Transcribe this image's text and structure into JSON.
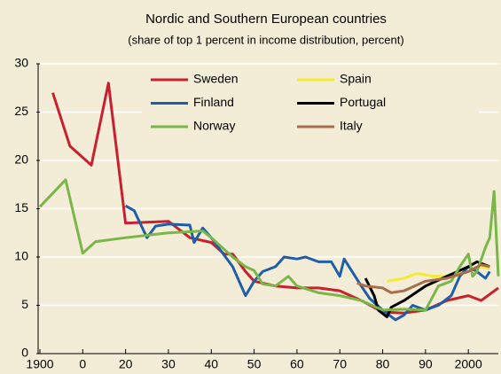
{
  "chart_data": {
    "type": "line",
    "title": "Nordic and Southern European countries",
    "subtitle": "(share of top 1 percent in income distribution, percent)",
    "xlim": [
      1900,
      2007
    ],
    "ylim": [
      0,
      30
    ],
    "xticks": [
      1900,
      {
        "value": 1910,
        "label": "0"
      },
      {
        "value": 1920,
        "label": "20"
      },
      {
        "value": 1930,
        "label": "30"
      },
      {
        "value": 1940,
        "label": "40"
      },
      {
        "value": 1950,
        "label": "50"
      },
      {
        "value": 1960,
        "label": "60"
      },
      {
        "value": 1970,
        "label": "70"
      },
      {
        "value": 1980,
        "label": "80"
      },
      {
        "value": 1990,
        "label": "90"
      },
      2000
    ],
    "yticks": [
      0,
      5,
      10,
      15,
      20,
      25,
      30
    ],
    "grid": true,
    "legend": "upper center",
    "series": [
      {
        "name": "Sweden",
        "color": "#c8202f",
        "x": [
          1903,
          1907,
          1912,
          1916,
          1920,
          1930,
          1935,
          1940,
          1943,
          1945,
          1948,
          1950,
          1955,
          1960,
          1965,
          1970,
          1975,
          1980,
          1985,
          1990,
          1995,
          2000,
          2003,
          2007
        ],
        "values": [
          27,
          21.5,
          19.5,
          28,
          13.5,
          13.7,
          12,
          11.5,
          10.3,
          10.3,
          8.5,
          7.5,
          7,
          6.8,
          6.8,
          6.5,
          5.5,
          4.3,
          4.2,
          4.5,
          5.5,
          6,
          5.5,
          6.8
        ]
      },
      {
        "name": "Spain",
        "color": "#f4ec2c",
        "x": [
          1981,
          1985,
          1988,
          1992,
          1995,
          2000,
          2003,
          2005
        ],
        "values": [
          7.5,
          7.8,
          8.3,
          8,
          8,
          8.5,
          9,
          8.8
        ]
      },
      {
        "name": "Finland",
        "color": "#1f5fa8",
        "x": [
          1920,
          1922,
          1925,
          1927,
          1930,
          1935,
          1936,
          1938,
          1940,
          1945,
          1948,
          1950,
          1952,
          1955,
          1957,
          1960,
          1962,
          1965,
          1968,
          1970,
          1971,
          1975,
          1977,
          1980,
          1983,
          1985,
          1987,
          1990,
          1993,
          1996,
          1998,
          2000,
          2002,
          2004,
          2005
        ],
        "values": [
          15.3,
          14.8,
          12,
          13.2,
          13.4,
          13.3,
          11.5,
          13,
          12,
          9,
          6,
          7.5,
          8.5,
          9,
          10,
          9.8,
          10,
          9.5,
          9.5,
          8,
          9.8,
          7,
          5.7,
          4.5,
          3.5,
          4,
          5,
          4.5,
          5,
          6,
          8,
          9,
          8.5,
          7.8,
          8.5
        ]
      },
      {
        "name": "Portugal",
        "color": "#000000",
        "x": [
          1976,
          1978,
          1979,
          1981,
          1982,
          1985,
          1990,
          1995,
          2000,
          2002,
          2005
        ],
        "values": [
          7.8,
          6,
          4.5,
          3.8,
          4.8,
          5.5,
          7,
          8,
          9,
          9.5,
          9
        ]
      },
      {
        "name": "Norway",
        "color": "#7ab648",
        "x": [
          1900,
          1906,
          1910,
          1913,
          1920,
          1930,
          1938,
          1940,
          1945,
          1948,
          1950,
          1952,
          1955,
          1958,
          1960,
          1965,
          1970,
          1975,
          1980,
          1985,
          1990,
          1993,
          1996,
          1998,
          2000,
          2001,
          2002,
          2004,
          2005,
          2006,
          2007
        ],
        "values": [
          15.2,
          18,
          10.4,
          11.6,
          12,
          12.5,
          12.7,
          12,
          10,
          9,
          8.6,
          7.2,
          7,
          8,
          7,
          6.3,
          6,
          5.5,
          4.5,
          4.6,
          4.5,
          7,
          7.5,
          9,
          10.3,
          8,
          8.5,
          11,
          12,
          16.8,
          8
        ]
      },
      {
        "name": "Italy",
        "color": "#a86d4b",
        "x": [
          1974,
          1976,
          1980,
          1982,
          1985,
          1990,
          1995,
          2000,
          2003,
          2005
        ],
        "values": [
          7.3,
          7,
          6.8,
          6.3,
          6.5,
          7.5,
          7.8,
          8.5,
          9.2,
          9
        ]
      }
    ]
  }
}
